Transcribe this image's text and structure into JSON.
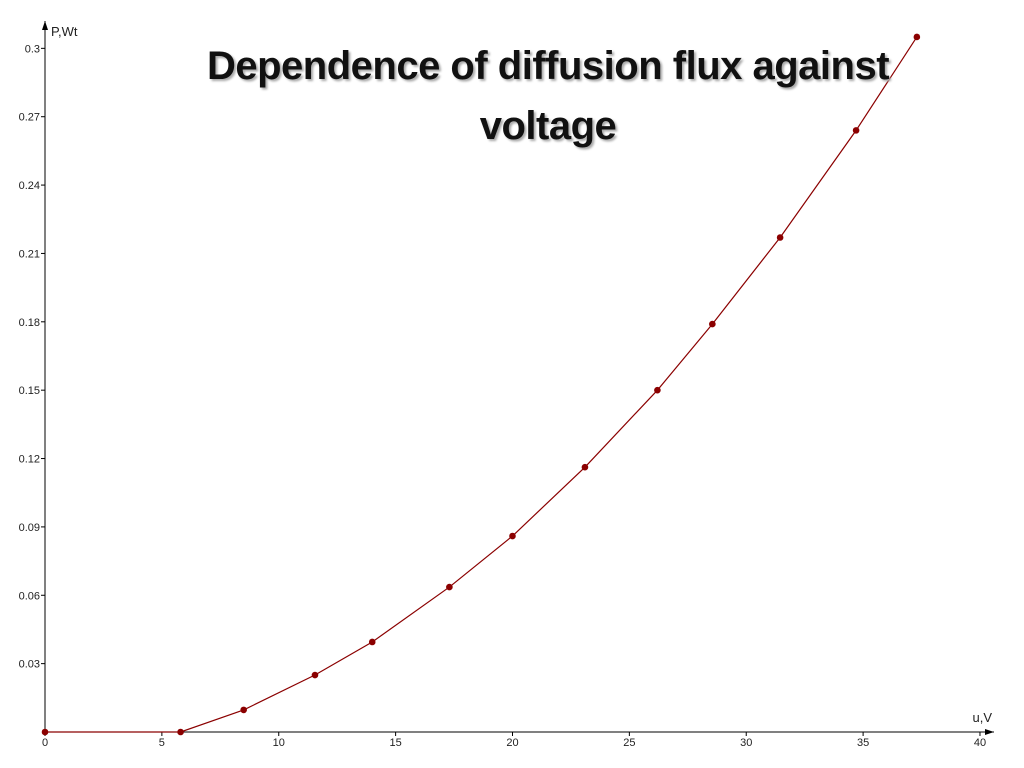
{
  "chart_data": {
    "type": "line",
    "title": "Dependence of diffusion flux  against voltage",
    "x_label": "u,V",
    "y_label": "P,Wt",
    "series": [
      {
        "color": "#8b0000",
        "x": [
          0,
          5.8,
          8.5,
          11.55,
          14.0,
          17.3,
          20.0,
          23.1,
          26.2,
          28.55,
          31.45,
          34.7,
          37.3
        ],
        "values": [
          0,
          0,
          0.0097,
          0.025,
          0.0395,
          0.0636,
          0.086,
          0.1162,
          0.15,
          0.179,
          0.217,
          0.264,
          0.305
        ]
      }
    ],
    "xlim": [
      0,
      40.6
    ],
    "ylim": [
      0,
      0.312
    ],
    "xticks": [
      0,
      5,
      10,
      15,
      20,
      25,
      30,
      35,
      40
    ],
    "yticks": [
      0.03,
      0.06,
      0.09,
      0.12,
      0.15,
      0.18,
      0.21,
      0.24,
      0.27,
      0.3
    ]
  }
}
